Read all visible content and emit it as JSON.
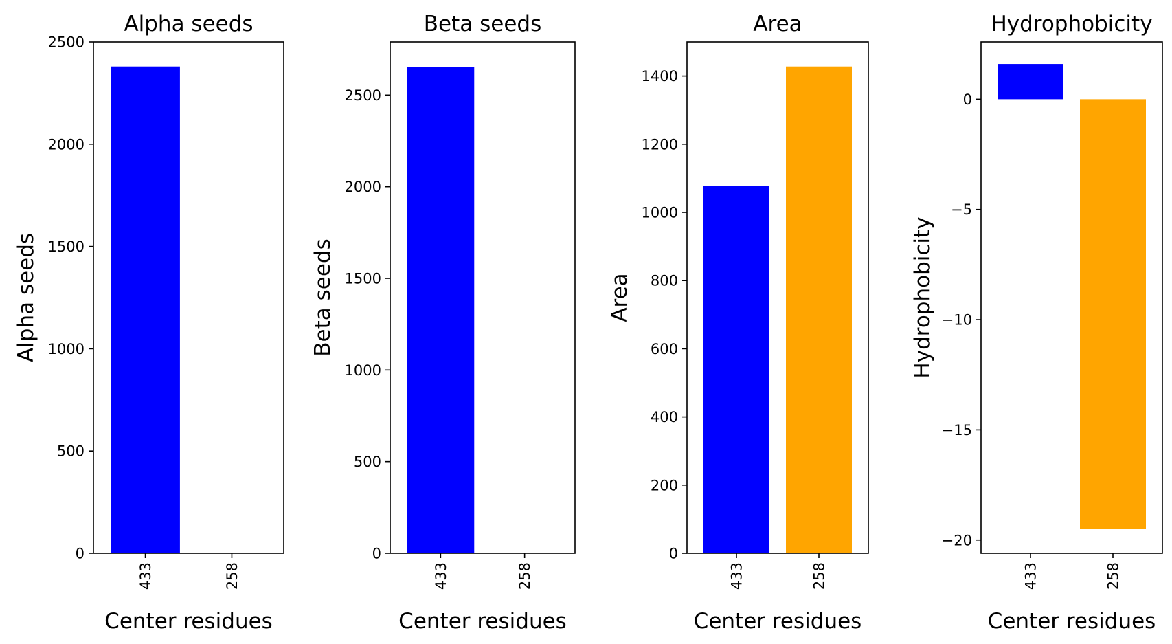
{
  "colors": {
    "blue": "#0000ff",
    "orange": "#ffa500",
    "axis": "#000000"
  },
  "chart_data": [
    {
      "type": "bar",
      "title": "Alpha seeds",
      "xlabel": "Center residues",
      "ylabel": "Alpha seeds",
      "categories": [
        "433",
        "258"
      ],
      "values": [
        2380,
        0
      ],
      "bar_colors": [
        "#0000ff",
        "#ffa500"
      ],
      "ylim": [
        0,
        2500
      ],
      "yticks": [
        0,
        500,
        1000,
        1500,
        2000,
        2500
      ],
      "ytick_labels": [
        "0",
        "500",
        "1000",
        "1500",
        "2000",
        "2500"
      ],
      "grid": false
    },
    {
      "type": "bar",
      "title": "Beta seeds",
      "xlabel": "Center residues",
      "ylabel": "Beta seeds",
      "categories": [
        "433",
        "258"
      ],
      "values": [
        2655,
        0
      ],
      "bar_colors": [
        "#0000ff",
        "#ffa500"
      ],
      "ylim": [
        0,
        2790
      ],
      "yticks": [
        0,
        500,
        1000,
        1500,
        2000,
        2500
      ],
      "ytick_labels": [
        "0",
        "500",
        "1000",
        "1500",
        "2000",
        "2500"
      ],
      "grid": false
    },
    {
      "type": "bar",
      "title": "Area",
      "xlabel": "Center residues",
      "ylabel": "Area",
      "categories": [
        "433",
        "258"
      ],
      "values": [
        1078,
        1428
      ],
      "bar_colors": [
        "#0000ff",
        "#ffa500"
      ],
      "ylim": [
        0,
        1500
      ],
      "yticks": [
        0,
        200,
        400,
        600,
        800,
        1000,
        1200,
        1400
      ],
      "ytick_labels": [
        "0",
        "200",
        "400",
        "600",
        "800",
        "1000",
        "1200",
        "1400"
      ],
      "grid": false
    },
    {
      "type": "bar",
      "title": "Hydrophobicity",
      "xlabel": "Center residues",
      "ylabel": "Hydrophobicity",
      "categories": [
        "433",
        "258"
      ],
      "values": [
        1.6,
        -19.5
      ],
      "bar_colors": [
        "#0000ff",
        "#ffa500"
      ],
      "ylim": [
        -20.6,
        2.6
      ],
      "yticks": [
        0,
        -5,
        -10,
        -15,
        -20
      ],
      "ytick_labels": [
        "0",
        "−5",
        "−10",
        "−15",
        "−20"
      ],
      "grid": false
    }
  ]
}
